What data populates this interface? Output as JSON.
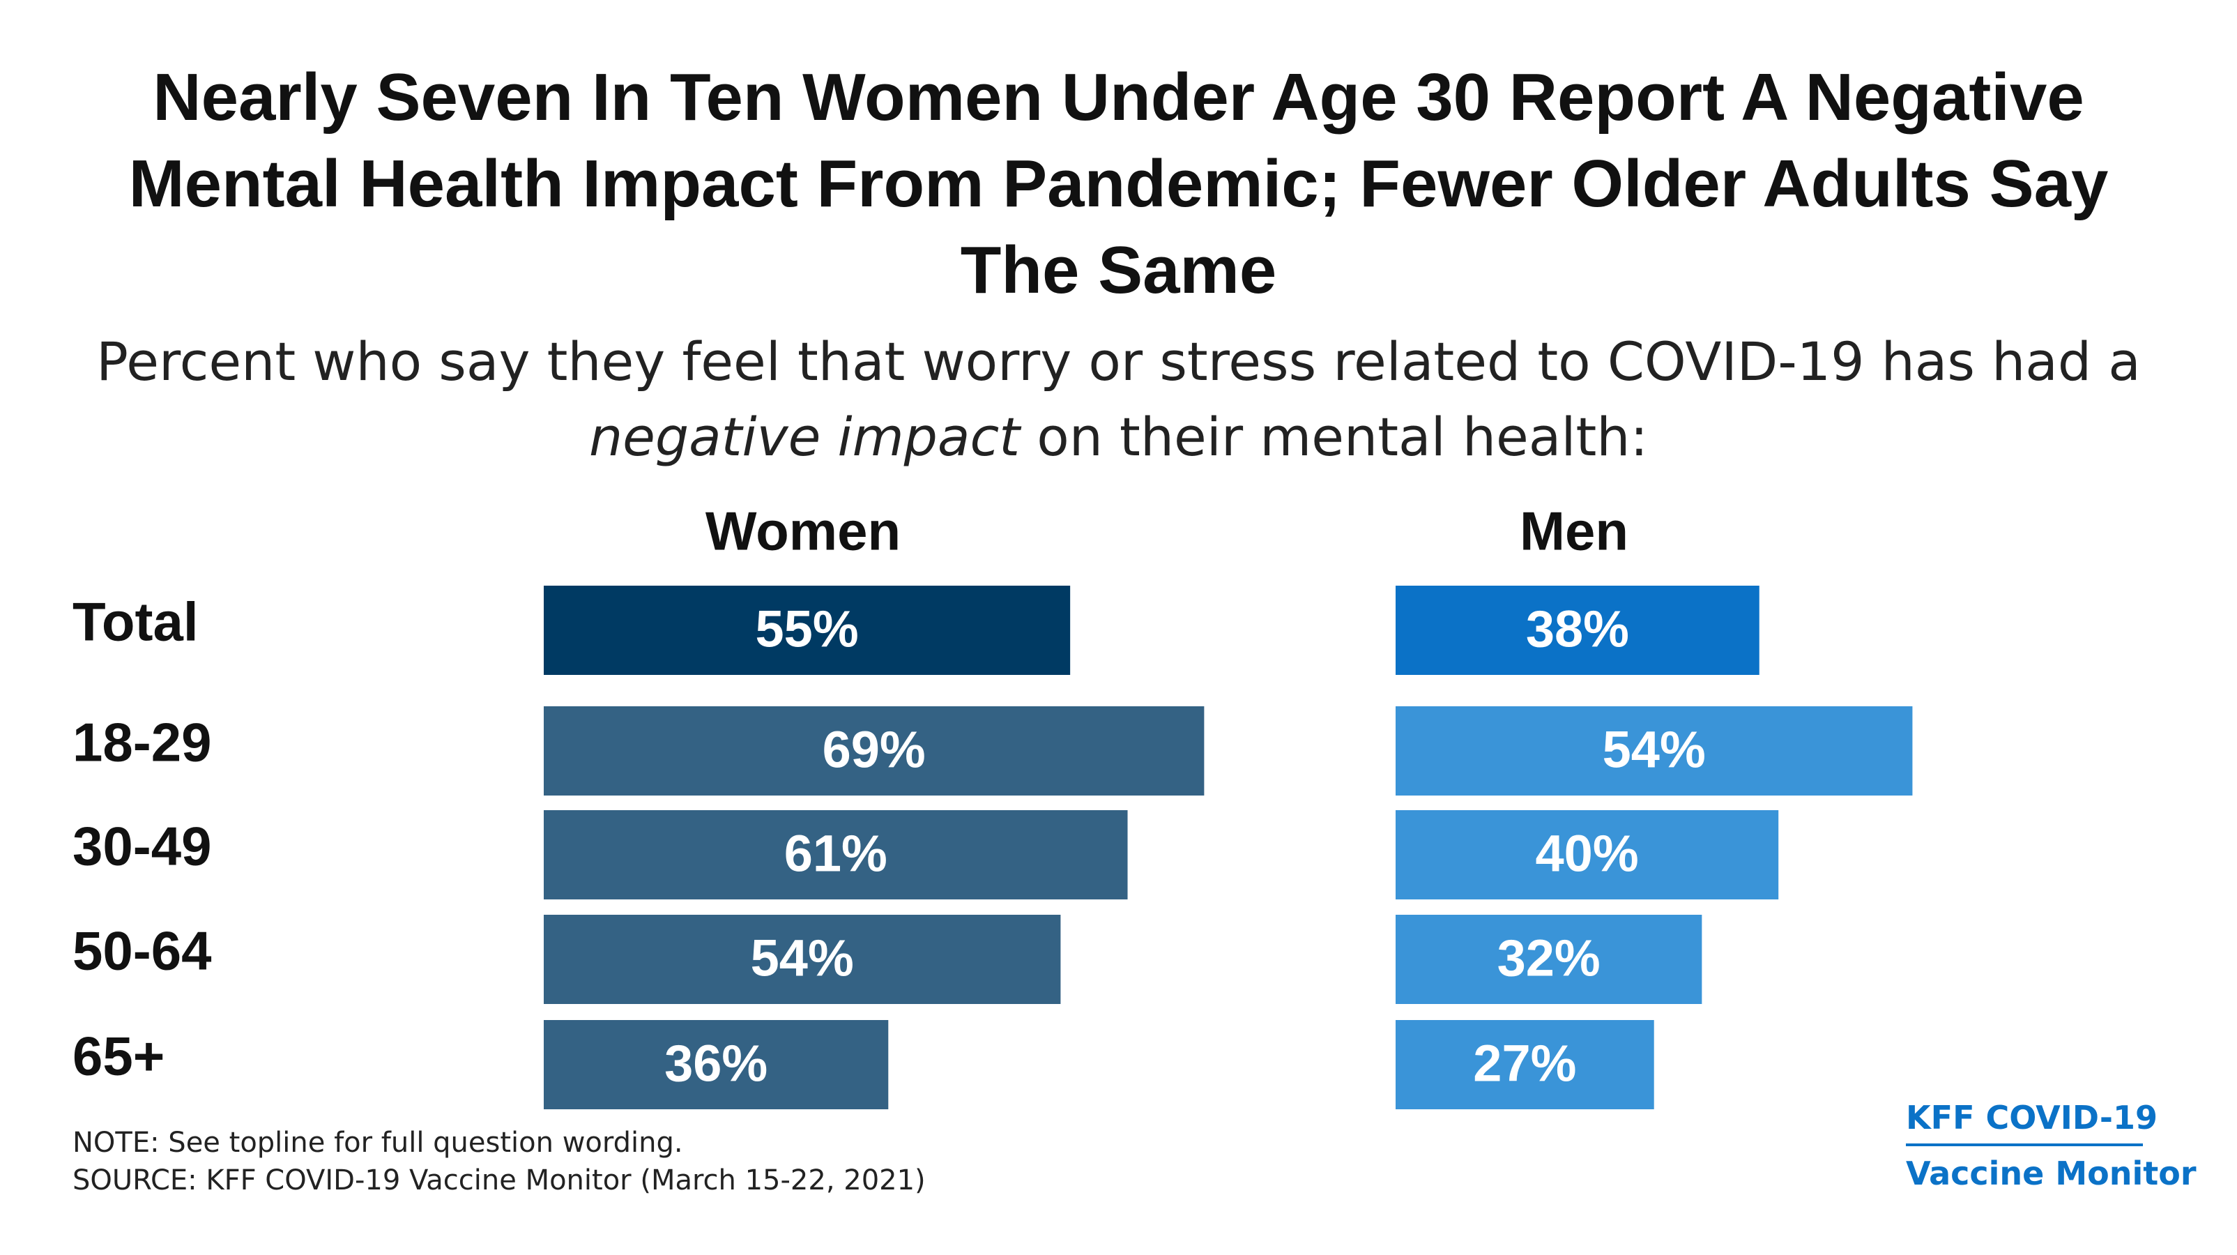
{
  "title": {
    "line1": "Nearly Seven In Ten Women Under Age 30 Report A Negative",
    "line2": "Mental Health Impact From Pandemic; Fewer Older Adults Say",
    "line3": "The Same"
  },
  "subtitle": {
    "line1": "Percent who say they feel that worry or stress related to COVID-19 has had a",
    "line2_italic": "negative impact",
    "line2_rest": " on their mental health:"
  },
  "chart_data": {
    "type": "bar",
    "orientation": "horizontal",
    "categories": [
      "Total",
      "18-29",
      "30-49",
      "50-64",
      "65+"
    ],
    "series": [
      {
        "name": "Women",
        "values": [
          55,
          69,
          61,
          54,
          36
        ],
        "labels": [
          "55%",
          "69%",
          "61%",
          "54%",
          "36%"
        ],
        "colors": [
          "#003a63",
          "#346284",
          "#346284",
          "#346284",
          "#346284"
        ]
      },
      {
        "name": "Men",
        "values": [
          38,
          54,
          40,
          32,
          27
        ],
        "labels": [
          "38%",
          "54%",
          "40%",
          "32%",
          "27%"
        ],
        "colors": [
          "#0b72c7",
          "#3a94d8",
          "#3a94d8",
          "#3a94d8",
          "#3a94d8"
        ]
      }
    ],
    "xlim": [
      0,
      100
    ]
  },
  "footnote": {
    "note": "NOTE: See topline for full question wording.",
    "source": "SOURCE: KFF COVID-19 Vaccine Monitor (March 15-22, 2021)"
  },
  "logo": {
    "line1": "KFF COVID-19",
    "line2": "Vaccine Monitor"
  }
}
